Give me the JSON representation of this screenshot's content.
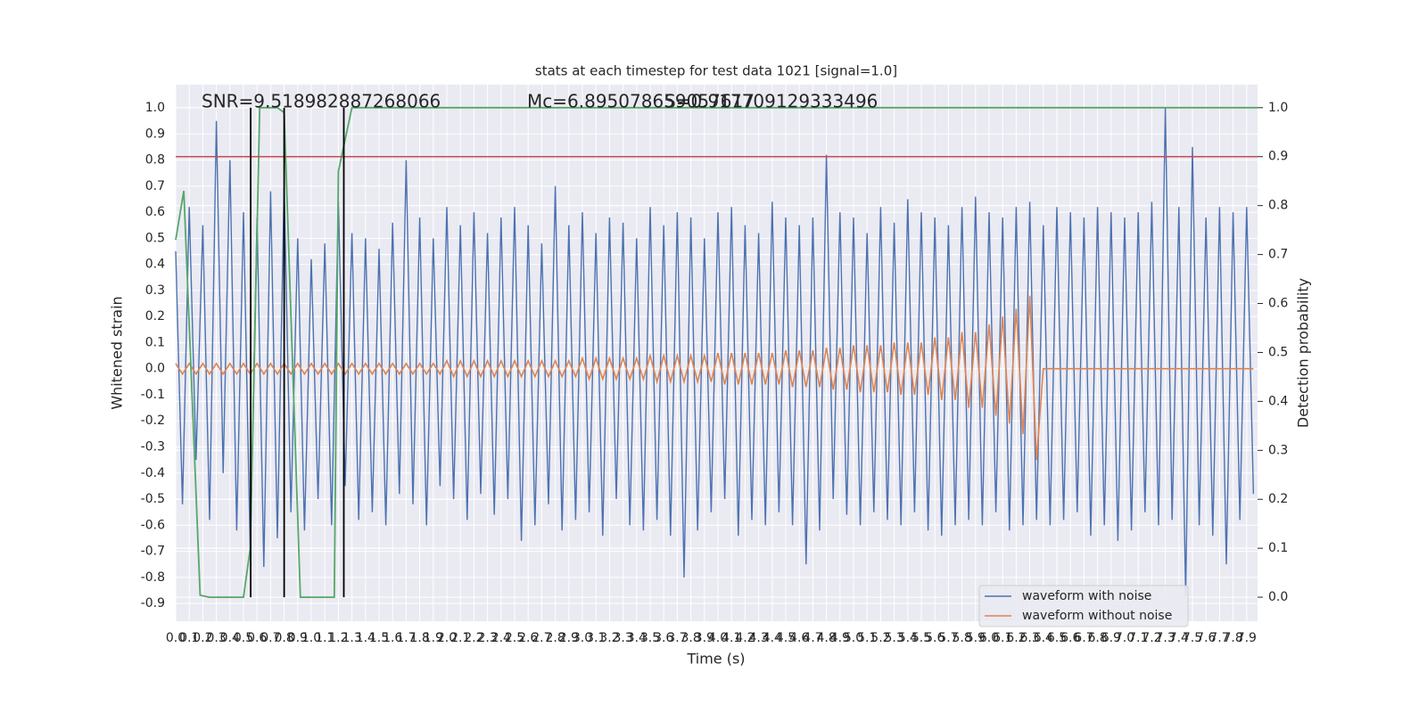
{
  "chart_data": {
    "type": "line",
    "title": "stats at each timestep for test data 1021 [signal=1.0]",
    "xlabel": "Time (s)",
    "ylabel": "Whitened strain",
    "y2label": "Detection probability",
    "annotations": [
      {
        "text": "SNR=9.518982887268066"
      },
      {
        "text": "Mc=6.895078659057617"
      },
      {
        "text": "S=0.917709129333496"
      }
    ],
    "legend": "lower right",
    "grid": true,
    "background": "#eaeaf2",
    "xlim": [
      0,
      7.98
    ],
    "ylim": [
      -0.968,
      1.089
    ],
    "y2lim": [
      -0.049,
      1.047
    ],
    "xticks": [
      {
        "value": 0,
        "label": "0.0"
      },
      0.1,
      0.2,
      0.3,
      0.4,
      0.5,
      0.6,
      0.7,
      0.8,
      0.9,
      {
        "value": 1,
        "label": "1.0"
      },
      1.1,
      1.2,
      1.3,
      1.4,
      1.5,
      1.6,
      1.7,
      1.8,
      1.9,
      {
        "value": 2,
        "label": "2.0"
      },
      2.1,
      2.2,
      2.3,
      2.4,
      2.5,
      2.6,
      2.7,
      2.8,
      2.9,
      {
        "value": 3,
        "label": "3.0"
      },
      3.1,
      3.2,
      3.3,
      3.4,
      3.5,
      3.6,
      3.7,
      3.8,
      3.9,
      {
        "value": 4,
        "label": "4.0"
      },
      4.1,
      4.2,
      4.3,
      4.4,
      4.5,
      4.6,
      4.7,
      4.8,
      4.9,
      {
        "value": 5,
        "label": "5.0"
      },
      5.1,
      5.2,
      5.3,
      5.4,
      5.5,
      5.6,
      5.7,
      5.8,
      5.9,
      {
        "value": 6,
        "label": "6.0"
      },
      6.1,
      6.2,
      6.3,
      6.4,
      6.5,
      6.6,
      6.7,
      6.8,
      6.9,
      {
        "value": 7,
        "label": "7.0"
      },
      7.1,
      7.2,
      7.3,
      7.4,
      7.5,
      7.6,
      7.7,
      7.8,
      7.9
    ],
    "yticks": [
      -0.9,
      -0.8,
      -0.7,
      -0.6,
      -0.5,
      -0.4,
      -0.3,
      -0.2,
      -0.1,
      {
        "value": 0,
        "label": "0.0"
      },
      0.1,
      0.2,
      0.3,
      0.4,
      0.5,
      0.6,
      0.7,
      0.8,
      0.9,
      {
        "value": 1,
        "label": "1.0"
      }
    ],
    "y2ticks": [
      {
        "value": 0,
        "label": "0.0"
      },
      0.1,
      0.2,
      0.3,
      0.4,
      0.5,
      0.6,
      0.7,
      0.8,
      0.9,
      {
        "value": 1,
        "label": "1.0"
      }
    ],
    "x": [
      0,
      0.05,
      0.1,
      0.15,
      0.2,
      0.25,
      0.3,
      0.35,
      0.4,
      0.45,
      0.5,
      0.55,
      0.6,
      0.65,
      0.7,
      0.75,
      0.8,
      0.85,
      0.9,
      0.95,
      1,
      1.05,
      1.1,
      1.15,
      1.2,
      1.25,
      1.3,
      1.35,
      1.4,
      1.45,
      1.5,
      1.55,
      1.6,
      1.65,
      1.7,
      1.75,
      1.8,
      1.85,
      1.9,
      1.95,
      2,
      2.05,
      2.1,
      2.15,
      2.2,
      2.25,
      2.3,
      2.35,
      2.4,
      2.45,
      2.5,
      2.55,
      2.6,
      2.65,
      2.7,
      2.75,
      2.8,
      2.85,
      2.9,
      2.95,
      3,
      3.05,
      3.1,
      3.15,
      3.2,
      3.25,
      3.3,
      3.35,
      3.4,
      3.45,
      3.5,
      3.55,
      3.6,
      3.65,
      3.7,
      3.75,
      3.8,
      3.85,
      3.9,
      3.95,
      4,
      4.05,
      4.1,
      4.15,
      4.2,
      4.25,
      4.3,
      4.35,
      4.4,
      4.45,
      4.5,
      4.55,
      4.6,
      4.65,
      4.7,
      4.75,
      4.8,
      4.85,
      4.9,
      4.95,
      5,
      5.05,
      5.1,
      5.15,
      5.2,
      5.25,
      5.3,
      5.35,
      5.4,
      5.45,
      5.5,
      5.55,
      5.6,
      5.65,
      5.7,
      5.75,
      5.8,
      5.85,
      5.9,
      5.95,
      6,
      6.05,
      6.1,
      6.15,
      6.2,
      6.25,
      6.3,
      6.35,
      6.4,
      6.45,
      6.5,
      6.55,
      6.6,
      6.65,
      6.7,
      6.75,
      6.8,
      6.85,
      6.9,
      6.95,
      7,
      7.05,
      7.1,
      7.15,
      7.2,
      7.25,
      7.3,
      7.35,
      7.4,
      7.45,
      7.5,
      7.55,
      7.6,
      7.65,
      7.7,
      7.75,
      7.8,
      7.85,
      7.9,
      7.95
    ],
    "series": [
      {
        "name": "waveform with noise",
        "color": "#4c72b0",
        "values": [
          0.45,
          -0.52,
          0.62,
          -0.35,
          0.55,
          -0.58,
          0.95,
          -0.4,
          0.8,
          -0.62,
          0.6,
          -0.71,
          0.58,
          -0.76,
          0.68,
          -0.65,
          0.7,
          -0.55,
          0.5,
          -0.62,
          0.42,
          -0.5,
          0.48,
          -0.6,
          0.64,
          -0.45,
          0.52,
          -0.58,
          0.5,
          -0.55,
          0.46,
          -0.6,
          0.56,
          -0.48,
          0.8,
          -0.52,
          0.58,
          -0.6,
          0.5,
          -0.45,
          0.62,
          -0.5,
          0.55,
          -0.58,
          0.6,
          -0.48,
          0.52,
          -0.56,
          0.58,
          -0.5,
          0.62,
          -0.66,
          0.55,
          -0.6,
          0.48,
          -0.52,
          0.7,
          -0.62,
          0.55,
          -0.58,
          0.6,
          -0.55,
          0.52,
          -0.64,
          0.58,
          -0.5,
          0.56,
          -0.6,
          0.5,
          -0.62,
          0.62,
          -0.58,
          0.55,
          -0.64,
          0.6,
          -0.8,
          0.58,
          -0.62,
          0.5,
          -0.55,
          0.6,
          -0.5,
          0.62,
          -0.64,
          0.55,
          -0.58,
          0.52,
          -0.6,
          0.64,
          -0.55,
          0.58,
          -0.6,
          0.55,
          -0.75,
          0.58,
          -0.62,
          0.82,
          -0.5,
          0.6,
          -0.56,
          0.58,
          -0.6,
          0.52,
          -0.55,
          0.62,
          -0.58,
          0.56,
          -0.6,
          0.65,
          -0.55,
          0.6,
          -0.62,
          0.58,
          -0.64,
          0.55,
          -0.6,
          0.62,
          -0.58,
          0.66,
          -0.6,
          0.6,
          -0.55,
          0.58,
          -0.62,
          0.62,
          -0.6,
          0.64,
          -0.58,
          0.55,
          -0.6,
          0.62,
          -0.58,
          0.6,
          -0.55,
          0.58,
          -0.64,
          0.62,
          -0.6,
          0.6,
          -0.66,
          0.58,
          -0.62,
          0.6,
          -0.55,
          0.64,
          -0.6,
          1.0,
          -0.58,
          0.62,
          -0.87,
          0.85,
          -0.6,
          0.58,
          -0.64,
          0.62,
          -0.75,
          0.6,
          -0.58,
          0.62,
          -0.48
        ]
      },
      {
        "name": "waveform without noise",
        "color": "#dd8452",
        "values": [
          0.02,
          -0.02,
          0.02,
          -0.02,
          0.02,
          -0.02,
          0.02,
          -0.02,
          0.02,
          -0.02,
          0.02,
          -0.02,
          0.02,
          -0.02,
          0.02,
          -0.02,
          0.02,
          -0.02,
          0.02,
          -0.02,
          0.02,
          -0.02,
          0.02,
          -0.02,
          0.02,
          -0.02,
          0.02,
          -0.02,
          0.02,
          -0.02,
          0.02,
          -0.02,
          0.02,
          -0.02,
          0.02,
          -0.02,
          0.02,
          -0.02,
          0.02,
          -0.02,
          0.03,
          -0.03,
          0.03,
          -0.03,
          0.03,
          -0.03,
          0.03,
          -0.03,
          0.03,
          -0.03,
          0.03,
          -0.03,
          0.03,
          -0.03,
          0.03,
          -0.03,
          0.03,
          -0.03,
          0.03,
          -0.03,
          0.04,
          -0.04,
          0.04,
          -0.04,
          0.04,
          -0.04,
          0.04,
          -0.04,
          0.04,
          -0.04,
          0.05,
          -0.05,
          0.05,
          -0.05,
          0.05,
          -0.05,
          0.05,
          -0.05,
          0.05,
          -0.05,
          0.06,
          -0.06,
          0.06,
          -0.06,
          0.06,
          -0.06,
          0.06,
          -0.06,
          0.06,
          -0.06,
          0.07,
          -0.07,
          0.07,
          -0.07,
          0.07,
          -0.07,
          0.08,
          -0.08,
          0.08,
          -0.08,
          0.09,
          -0.09,
          0.09,
          -0.09,
          0.09,
          -0.09,
          0.1,
          -0.1,
          0.1,
          -0.1,
          0.1,
          -0.1,
          0.12,
          -0.12,
          0.12,
          -0.12,
          0.14,
          -0.15,
          0.14,
          -0.15,
          0.17,
          -0.18,
          0.2,
          -0.21,
          0.23,
          -0.25,
          0.28,
          -0.35,
          0,
          0,
          0,
          0,
          0,
          0,
          0,
          0,
          0,
          0,
          0,
          0,
          0,
          0,
          0,
          0,
          0,
          0,
          0,
          0,
          0,
          0,
          0,
          0,
          0,
          0,
          0,
          0,
          0,
          0,
          0,
          0
        ]
      }
    ],
    "probability": {
      "color": "#55a868",
      "x": [
        0,
        0.06,
        0.18,
        0.25,
        0.5,
        0.55,
        0.62,
        0.75,
        0.8,
        0.92,
        1.17,
        1.2,
        1.3,
        7.98
      ],
      "values": [
        0.73,
        0.83,
        0.004,
        0,
        0,
        0.1,
        1,
        1,
        0.99,
        0,
        0,
        0.87,
        1,
        1
      ]
    },
    "vlines": {
      "color": "#000000",
      "x": [
        0.553,
        0.8,
        1.24
      ]
    },
    "threshold": {
      "color": "#c44e52",
      "value": 0.9
    }
  }
}
